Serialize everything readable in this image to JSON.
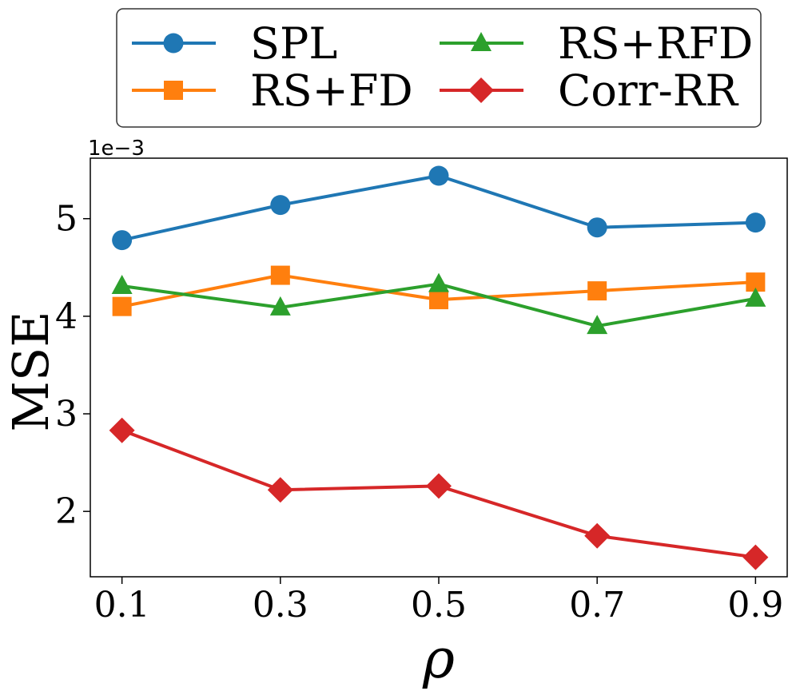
{
  "chart_data": {
    "type": "line",
    "title": "",
    "xlabel": "ρ",
    "ylabel": "MSE",
    "y_offset_label": "1e−3",
    "x": [
      0.1,
      0.3,
      0.5,
      0.7,
      0.9
    ],
    "x_tick_labels": [
      "0.1",
      "0.3",
      "0.5",
      "0.7",
      "0.9"
    ],
    "y_ticks": [
      2,
      3,
      4,
      5
    ],
    "y_tick_labels": [
      "2",
      "3",
      "4",
      "5"
    ],
    "xlim": [
      0.06,
      0.94
    ],
    "ylim": [
      1.33,
      5.62
    ],
    "grid": false,
    "legend_position": "top",
    "series": [
      {
        "name": "SPL",
        "color": "#1f77b4",
        "marker": "circle",
        "values": [
          4.78,
          5.14,
          5.44,
          4.91,
          4.96
        ]
      },
      {
        "name": "RS+FD",
        "color": "#ff7f0e",
        "marker": "square",
        "values": [
          4.1,
          4.42,
          4.17,
          4.26,
          4.35
        ]
      },
      {
        "name": "RS+RFD",
        "color": "#2ca02c",
        "marker": "triangle",
        "values": [
          4.31,
          4.09,
          4.33,
          3.9,
          4.18
        ]
      },
      {
        "name": "Corr-RR",
        "color": "#d62728",
        "marker": "diamond",
        "values": [
          2.83,
          2.22,
          2.26,
          1.75,
          1.53
        ]
      }
    ]
  }
}
